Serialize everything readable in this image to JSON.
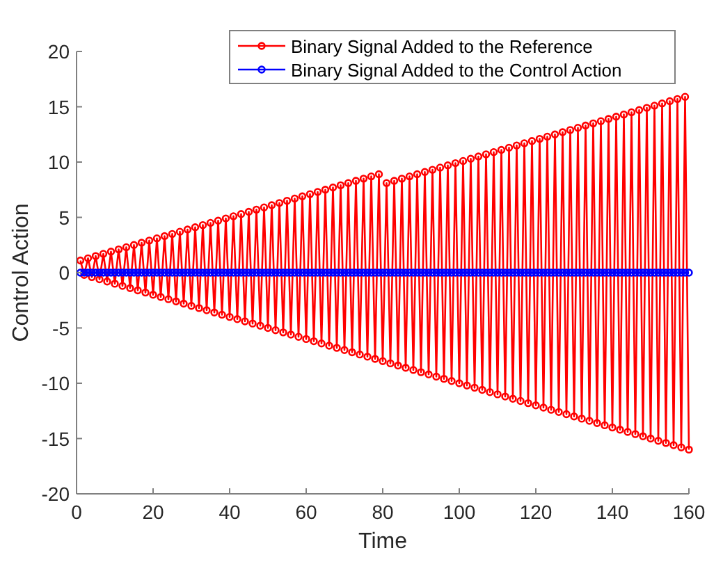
{
  "chart_data": {
    "type": "line",
    "xlabel": "Time",
    "ylabel": "Control Action",
    "x": [
      1,
      2,
      3,
      4,
      5,
      6,
      7,
      8,
      9,
      10,
      11,
      12,
      13,
      14,
      15,
      16,
      17,
      18,
      19,
      20,
      21,
      22,
      23,
      24,
      25,
      26,
      27,
      28,
      29,
      30,
      31,
      32,
      33,
      34,
      35,
      36,
      37,
      38,
      39,
      40,
      41,
      42,
      43,
      44,
      45,
      46,
      47,
      48,
      49,
      50,
      51,
      52,
      53,
      54,
      55,
      56,
      57,
      58,
      59,
      60,
      61,
      62,
      63,
      64,
      65,
      66,
      67,
      68,
      69,
      70,
      71,
      72,
      73,
      74,
      75,
      76,
      77,
      78,
      79,
      80,
      81,
      82,
      83,
      84,
      85,
      86,
      87,
      88,
      89,
      90,
      91,
      92,
      93,
      94,
      95,
      96,
      97,
      98,
      99,
      100,
      101,
      102,
      103,
      104,
      105,
      106,
      107,
      108,
      109,
      110,
      111,
      112,
      113,
      114,
      115,
      116,
      117,
      118,
      119,
      120,
      121,
      122,
      123,
      124,
      125,
      126,
      127,
      128,
      129,
      130,
      131,
      132,
      133,
      134,
      135,
      136,
      137,
      138,
      139,
      140,
      141,
      142,
      143,
      144,
      145,
      146,
      147,
      148,
      149,
      150,
      151,
      152,
      153,
      154,
      155,
      156,
      157,
      158,
      159,
      160
    ],
    "series": [
      {
        "name": "Binary Signal Added to the Reference",
        "color": "#ff0000",
        "marker": "circle",
        "values": [
          1.1,
          -0.2,
          1.3,
          -0.4,
          1.5,
          -0.6,
          1.7,
          -0.8,
          1.9,
          -1.0,
          2.1,
          -1.2,
          2.3,
          -1.4,
          2.5,
          -1.6,
          2.7,
          -1.8,
          2.9,
          -2.0,
          3.1,
          -2.2,
          3.3,
          -2.4,
          3.5,
          -2.6,
          3.7,
          -2.8,
          3.9,
          -3.0,
          4.1,
          -3.2,
          4.3,
          -3.4,
          4.5,
          -3.6,
          4.7,
          -3.8,
          4.9,
          -4.0,
          5.1,
          -4.2,
          5.3,
          -4.4,
          5.5,
          -4.6,
          5.7,
          -4.8,
          5.9,
          -5.0,
          6.1,
          -5.2,
          6.3,
          -5.4,
          6.5,
          -5.6,
          6.7,
          -5.8,
          6.9,
          -6.0,
          7.1,
          -6.2,
          7.3,
          -6.4,
          7.5,
          -6.6,
          7.7,
          -6.8,
          7.9,
          -7.0,
          8.1,
          -7.2,
          8.3,
          -7.4,
          8.5,
          -7.6,
          8.7,
          -7.8,
          8.9,
          -8.0,
          8.1,
          -8.2,
          8.3,
          -8.4,
          8.5,
          -8.6,
          8.7,
          -8.8,
          8.9,
          -9.0,
          9.1,
          -9.2,
          9.3,
          -9.4,
          9.5,
          -9.6,
          9.7,
          -9.8,
          9.9,
          -10.0,
          10.1,
          -10.2,
          10.3,
          -10.4,
          10.5,
          -10.6,
          10.7,
          -10.8,
          10.9,
          -11.0,
          11.1,
          -11.2,
          11.3,
          -11.4,
          11.5,
          -11.6,
          11.7,
          -11.8,
          11.9,
          -12.0,
          12.1,
          -12.2,
          12.3,
          -12.4,
          12.5,
          -12.6,
          12.7,
          -12.8,
          12.9,
          -13.0,
          13.1,
          -13.2,
          13.3,
          -13.4,
          13.5,
          -13.6,
          13.7,
          -13.8,
          13.9,
          -14.0,
          14.1,
          -14.2,
          14.3,
          -14.4,
          14.5,
          -14.6,
          14.7,
          -14.8,
          14.9,
          -15.0,
          15.1,
          -15.2,
          15.3,
          -15.4,
          15.5,
          -15.6,
          15.7,
          -15.8,
          15.9,
          -16.0
        ]
      },
      {
        "name": "Binary Signal Added to the Control Action",
        "color": "#0000ff",
        "marker": "circle",
        "values": [
          0,
          0,
          0,
          0,
          0,
          0,
          0,
          0,
          0,
          0,
          0,
          0,
          0,
          0,
          0,
          0,
          0,
          0,
          0,
          0,
          0,
          0,
          0,
          0,
          0,
          0,
          0,
          0,
          0,
          0,
          0,
          0,
          0,
          0,
          0,
          0,
          0,
          0,
          0,
          0,
          0,
          0,
          0,
          0,
          0,
          0,
          0,
          0,
          0,
          0,
          0,
          0,
          0,
          0,
          0,
          0,
          0,
          0,
          0,
          0,
          0,
          0,
          0,
          0,
          0,
          0,
          0,
          0,
          0,
          0,
          0,
          0,
          0,
          0,
          0,
          0,
          0,
          0,
          0,
          0,
          0,
          0,
          0,
          0,
          0,
          0,
          0,
          0,
          0,
          0,
          0,
          0,
          0,
          0,
          0,
          0,
          0,
          0,
          0,
          0,
          0,
          0,
          0,
          0,
          0,
          0,
          0,
          0,
          0,
          0,
          0,
          0,
          0,
          0,
          0,
          0,
          0,
          0,
          0,
          0,
          0,
          0,
          0,
          0,
          0,
          0,
          0,
          0,
          0,
          0,
          0,
          0,
          0,
          0,
          0,
          0,
          0,
          0,
          0,
          0,
          0,
          0,
          0,
          0,
          0,
          0,
          0,
          0,
          0,
          0,
          0,
          0,
          0,
          0,
          0,
          0,
          0,
          0,
          0,
          0
        ]
      }
    ],
    "xlim": [
      0,
      160
    ],
    "xticks": [
      0,
      20,
      40,
      60,
      80,
      100,
      120,
      140,
      160
    ],
    "ylim": [
      -20,
      20
    ],
    "yticks": [
      -20,
      -15,
      -10,
      -5,
      0,
      5,
      10,
      15,
      20
    ],
    "grid": false,
    "legend": "top right"
  }
}
